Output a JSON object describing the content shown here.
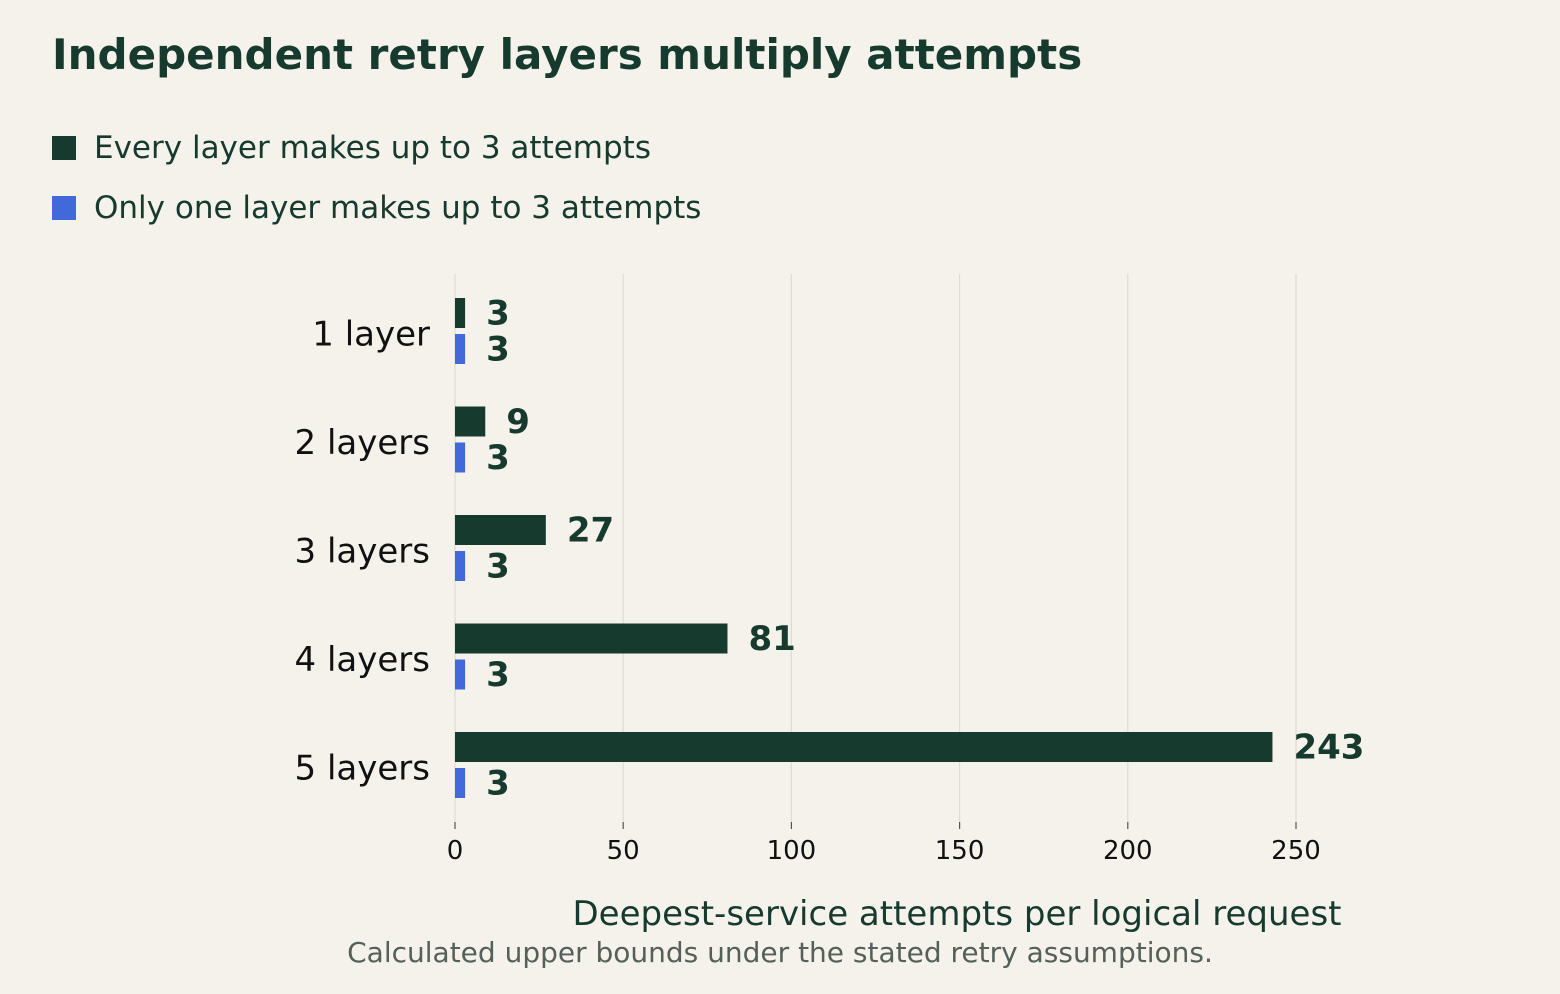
{
  "chart_data": {
    "type": "bar",
    "orientation": "horizontal",
    "title": "Independent retry layers multiply attempts",
    "categories": [
      "1 layer",
      "2 layers",
      "3 layers",
      "4 layers",
      "5 layers"
    ],
    "series": [
      {
        "name": "Every layer makes up to 3 attempts",
        "color": "#173a2f",
        "values": [
          3,
          9,
          27,
          81,
          243
        ]
      },
      {
        "name": "Only one layer makes up to 3 attempts",
        "color": "#4169d9",
        "values": [
          3,
          3,
          3,
          3,
          3
        ]
      }
    ],
    "xlabel": "Deepest-service attempts per logical request",
    "xlim": [
      0,
      270
    ],
    "xticks": [
      0,
      50,
      100,
      150,
      200,
      250
    ],
    "grid": "vertical",
    "legend_position": "top-left",
    "data_labels": true
  },
  "caption": "Calculated upper bounds under the stated retry assumptions."
}
